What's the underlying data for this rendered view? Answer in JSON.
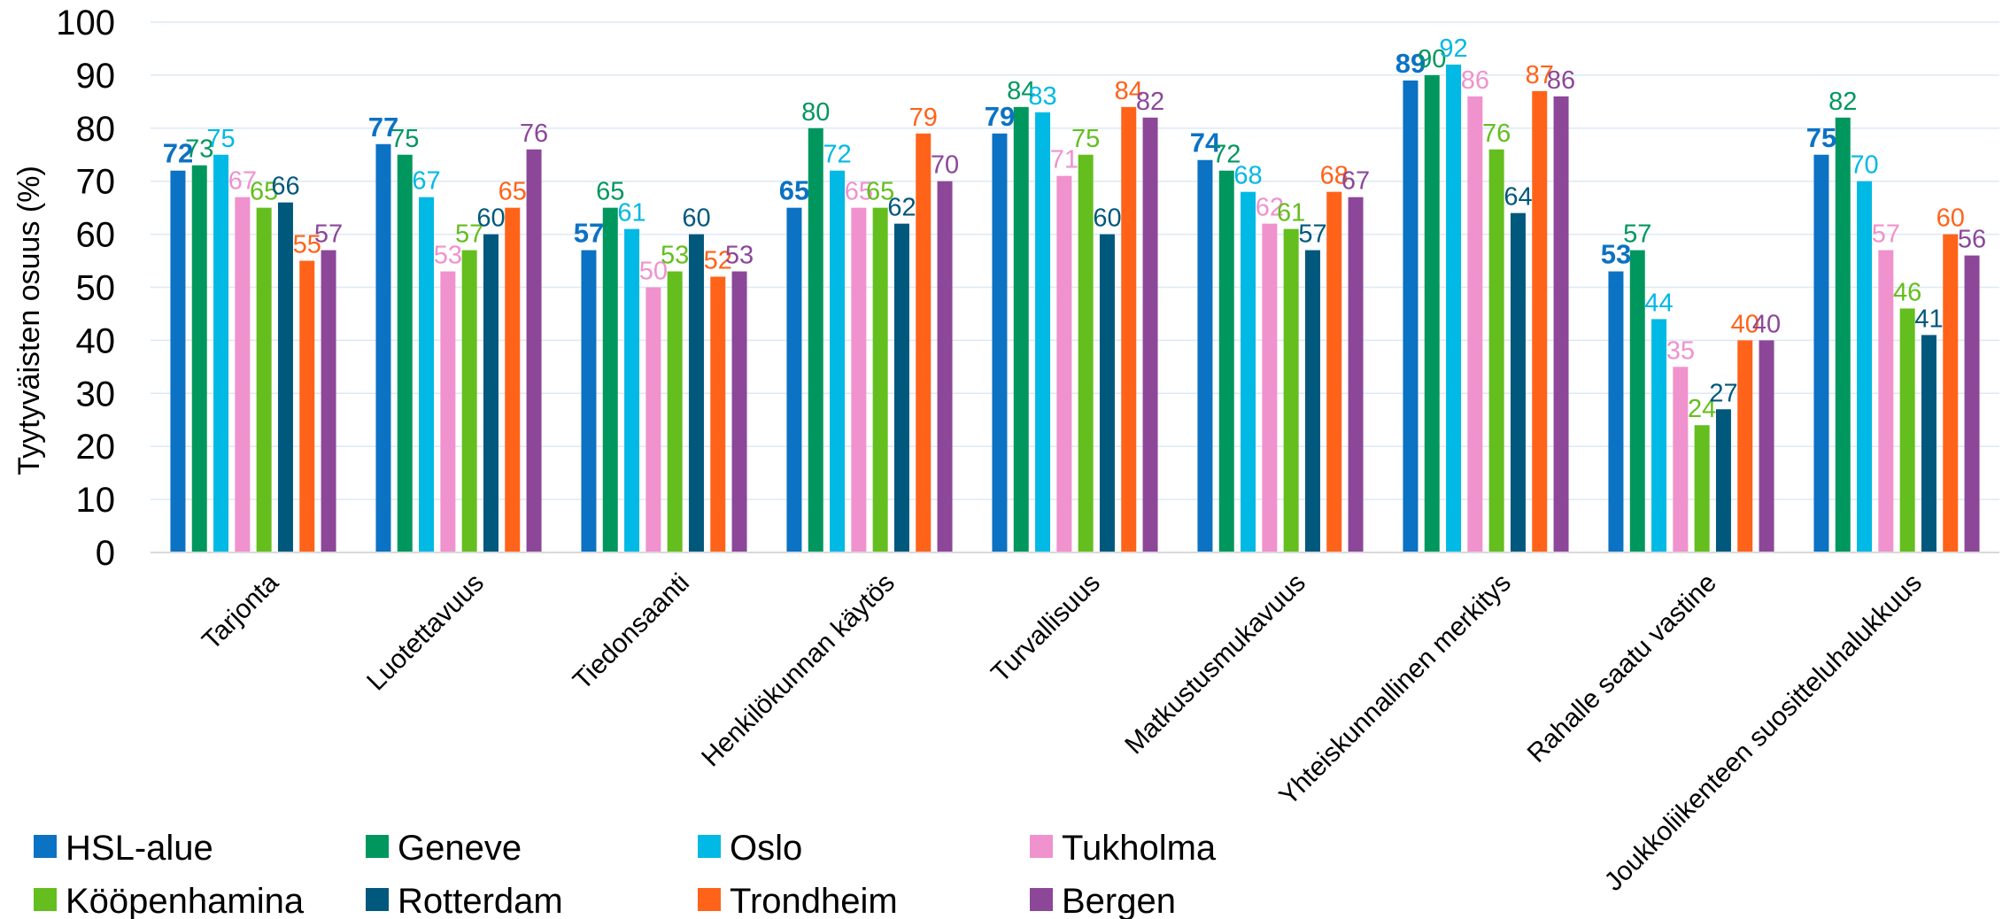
{
  "chart_data": {
    "type": "bar",
    "ylabel": "Tyytyväisten osuus (%)",
    "ylim": [
      0,
      100
    ],
    "yticks": [
      0,
      10,
      20,
      30,
      40,
      50,
      60,
      70,
      80,
      90,
      100
    ],
    "grid": true,
    "legend_position": "bottom-left",
    "categories": [
      "Tarjonta",
      "Luotettavuus",
      "Tiedonsaanti",
      "Henkilökunnan käytös",
      "Turvallisuus",
      "Matkustusmukavuus",
      "Yhteiskunnallinen merkitys",
      "Rahalle saatu vastine",
      "Joukkoliikenteen suositteluhalukkuus"
    ],
    "series": [
      {
        "name": "HSL-alue",
        "color": "#0C72C3",
        "label_bold": true,
        "values": [
          72,
          77,
          57,
          65,
          79,
          74,
          89,
          53,
          75
        ]
      },
      {
        "name": "Geneve",
        "color": "#00975F",
        "values": [
          73,
          75,
          65,
          80,
          84,
          72,
          90,
          57,
          82
        ]
      },
      {
        "name": "Oslo",
        "color": "#00B9E4",
        "values": [
          75,
          67,
          61,
          72,
          83,
          68,
          92,
          44,
          70
        ]
      },
      {
        "name": "Tukholma",
        "color": "#F092CD",
        "values": [
          67,
          53,
          50,
          65,
          71,
          62,
          86,
          35,
          57
        ]
      },
      {
        "name": "Kööpenhamina",
        "color": "#64BE1E",
        "values": [
          65,
          57,
          53,
          65,
          75,
          61,
          76,
          24,
          46
        ]
      },
      {
        "name": "Rotterdam",
        "color": "#00587C",
        "values": [
          66,
          60,
          60,
          62,
          60,
          57,
          64,
          27,
          41
        ]
      },
      {
        "name": "Trondheim",
        "color": "#FF6319",
        "values": [
          55,
          65,
          52,
          79,
          84,
          68,
          87,
          40,
          60
        ]
      },
      {
        "name": "Bergen",
        "color": "#8C4799",
        "values": [
          57,
          76,
          53,
          70,
          82,
          67,
          86,
          40,
          56
        ]
      }
    ]
  }
}
